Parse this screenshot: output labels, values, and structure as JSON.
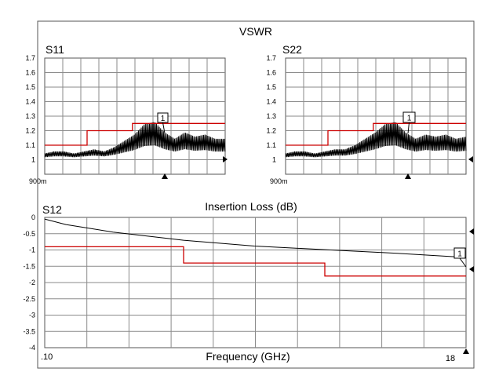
{
  "page_title": "VSWR",
  "chart_data": [
    {
      "type": "line",
      "title": "S11",
      "ylim": [
        0.9,
        1.7
      ],
      "yticks": [
        "1.7",
        "1.6",
        "1.5",
        "1.4",
        "1.3",
        "1.2",
        "1.1",
        "1",
        "900m"
      ],
      "grid": true,
      "marker_label": "1",
      "series": [
        {
          "color": "#000000",
          "x": [
            0.1,
            1.0,
            2.0,
            3.0,
            4.0,
            5.0,
            6.0,
            7.0,
            8.0,
            9.0,
            10.0,
            11.0,
            12.0,
            13.0,
            14.0,
            15.0,
            16.0,
            17.0,
            18.0
          ],
          "y": [
            1.03,
            1.04,
            1.04,
            1.03,
            1.04,
            1.05,
            1.04,
            1.06,
            1.09,
            1.12,
            1.17,
            1.18,
            1.13,
            1.1,
            1.13,
            1.11,
            1.12,
            1.1,
            1.1
          ]
        },
        {
          "color": "#cc0000",
          "x": [
            0.1,
            4.0,
            4.0,
            4.3,
            4.3,
            8.8,
            8.8,
            18.0
          ],
          "y": [
            1.1,
            1.1,
            1.1,
            1.1,
            1.2,
            1.2,
            1.25,
            1.25
          ]
        }
      ]
    },
    {
      "type": "line",
      "title": "S22",
      "ylim": [
        0.9,
        1.7
      ],
      "yticks": [
        "1.7",
        "1.6",
        "1.5",
        "1.4",
        "1.3",
        "1.2",
        "1.1",
        "1",
        "900m"
      ],
      "grid": true,
      "marker_label": "1",
      "series": [
        {
          "color": "#000000",
          "x": [
            0.1,
            1.0,
            2.0,
            3.0,
            4.0,
            5.0,
            6.0,
            7.0,
            8.0,
            9.0,
            10.0,
            11.0,
            12.0,
            13.0,
            14.0,
            15.0,
            16.0,
            17.0,
            18.0
          ],
          "y": [
            1.03,
            1.04,
            1.04,
            1.03,
            1.04,
            1.05,
            1.05,
            1.07,
            1.1,
            1.13,
            1.17,
            1.18,
            1.13,
            1.1,
            1.12,
            1.11,
            1.12,
            1.1,
            1.11
          ]
        },
        {
          "color": "#cc0000",
          "x": [
            0.1,
            4.0,
            4.0,
            4.3,
            4.3,
            8.8,
            8.8,
            18.0
          ],
          "y": [
            1.1,
            1.1,
            1.1,
            1.1,
            1.2,
            1.2,
            1.25,
            1.25
          ]
        }
      ]
    },
    {
      "type": "line",
      "title": "S12",
      "subtitle": "Insertion Loss (dB)",
      "xlabel": "Frequency (GHz)",
      "xtick_start": ".10",
      "xtick_end": "18",
      "xlim": [
        0.1,
        18
      ],
      "ylim": [
        -4,
        0
      ],
      "yticks": [
        "0",
        "-0.5",
        "-1",
        "-1.5",
        "-2",
        "-2.5",
        "-3",
        "-3.5",
        "-4"
      ],
      "grid": true,
      "marker_label": "1",
      "series": [
        {
          "color": "#000000",
          "x": [
            0.1,
            1.0,
            3.0,
            6.0,
            9.0,
            12.0,
            15.0,
            18.0
          ],
          "y": [
            -0.05,
            -0.22,
            -0.45,
            -0.7,
            -0.88,
            -0.99,
            -1.1,
            -1.23
          ]
        },
        {
          "color": "#cc0000",
          "x": [
            0.1,
            6.0,
            6.0,
            12.0,
            12.0,
            18.0
          ],
          "y": [
            -0.9,
            -0.9,
            -1.4,
            -1.4,
            -1.8,
            -1.8
          ]
        }
      ]
    }
  ]
}
